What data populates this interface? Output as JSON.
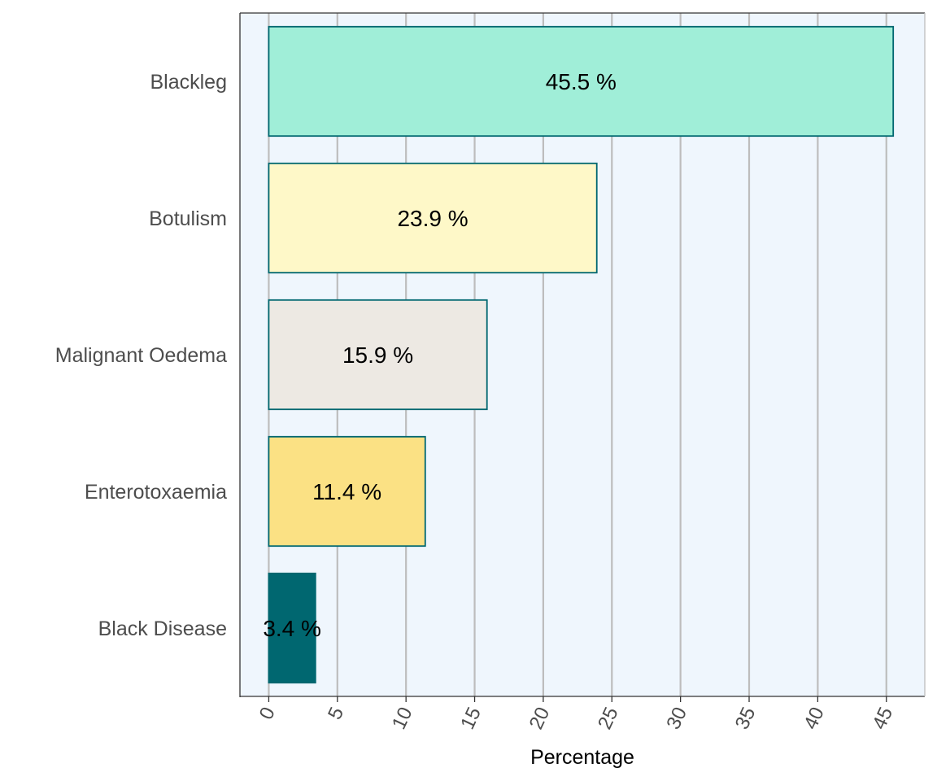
{
  "chart_data": {
    "type": "bar",
    "orientation": "horizontal",
    "categories": [
      "Blackleg",
      "Botulism",
      "Malignant Oedema",
      "Enterotoxaemia",
      "Black Disease"
    ],
    "values": [
      45.5,
      23.9,
      15.9,
      11.4,
      3.4
    ],
    "data_labels": [
      "45.5 %",
      "23.9 %",
      "15.9 %",
      "11.4 %",
      "3.4 %"
    ],
    "colors": [
      "#a0eed8",
      "#fef8c8",
      "#ede9e3",
      "#fbe184",
      "#006770"
    ],
    "bar_edge_color": "#006770",
    "panel_background": "#eff6fd",
    "grid_color": "#bdbdbd",
    "title": "",
    "xlabel": "Percentage",
    "ylabel": "",
    "xlim": [
      -2.1,
      47.8
    ],
    "xticks": [
      0,
      5,
      10,
      15,
      20,
      25,
      30,
      35,
      40,
      45
    ],
    "xtick_rotation": -65,
    "grid": "vertical major",
    "legend": "none"
  }
}
